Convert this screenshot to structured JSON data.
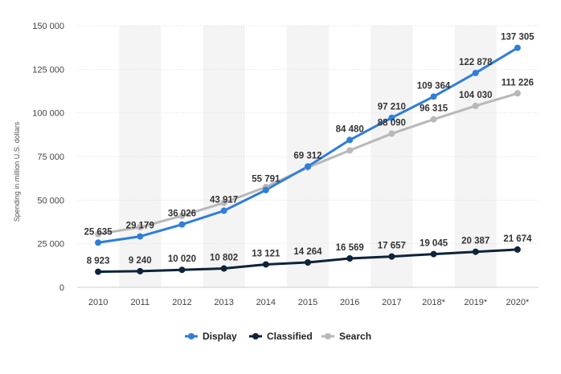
{
  "chart_data": {
    "type": "line",
    "ylabel": "Spending in million U.S. dollars",
    "xlabel": "",
    "categories": [
      "2010",
      "2011",
      "2012",
      "2013",
      "2014",
      "2015",
      "2016",
      "2017",
      "2018*",
      "2019*",
      "2020*"
    ],
    "ylim": [
      0,
      150000
    ],
    "yticks": [
      0,
      25000,
      50000,
      75000,
      100000,
      125000,
      150000
    ],
    "ytick_labels": [
      "0",
      "25 000",
      "50 000",
      "75 000",
      "100 000",
      "125 000",
      "150 000"
    ],
    "grid": true,
    "alternating_column_bands": true,
    "legend_position": "bottom",
    "series": [
      {
        "name": "Display",
        "color": "#2f7ed8",
        "values": [
          25635,
          29179,
          36026,
          43917,
          55791,
          69312,
          84480,
          97210,
          109364,
          122878,
          137305
        ],
        "labels": [
          "25 635",
          "29 179",
          "36 026",
          "43 917",
          "55 791",
          "69 312",
          "84 480",
          "97 210",
          "109 364",
          "122 878",
          "137 305"
        ]
      },
      {
        "name": "Classified",
        "color": "#0d233a",
        "values": [
          8923,
          9240,
          10020,
          10802,
          13121,
          14264,
          16569,
          17657,
          19045,
          20387,
          21674
        ],
        "labels": [
          "8 923",
          "9 240",
          "10 020",
          "10 802",
          "13 121",
          "14 264",
          "16 569",
          "17 657",
          "19 045",
          "20 387",
          "21 674"
        ]
      },
      {
        "name": "Search",
        "color": "#b8b8b8",
        "values": [
          30500,
          34500,
          41000,
          48500,
          57500,
          68700,
          78500,
          88090,
          96315,
          104030,
          111226
        ],
        "labels": [
          "",
          "",
          "",
          "",
          "",
          "",
          "",
          "88 090",
          "96 315",
          "104 030",
          "111 226"
        ]
      }
    ]
  }
}
